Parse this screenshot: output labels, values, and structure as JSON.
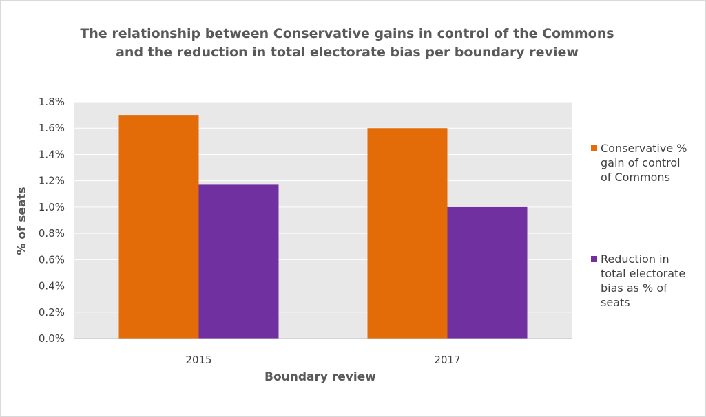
{
  "chart_data": {
    "type": "bar",
    "title_lines": [
      "The relationship between Conservative gains in control of the Commons",
      "and the reduction in total electorate bias per boundary review"
    ],
    "xlabel": "Boundary review",
    "ylabel": "% of seats",
    "categories": [
      "2015",
      "2017"
    ],
    "series": [
      {
        "name_lines": [
          "Conservative %",
          "gain of control",
          "of Commons"
        ],
        "values": [
          1.7,
          1.6
        ],
        "color": "#e36c09"
      },
      {
        "name_lines": [
          "Reduction in",
          "total electorate",
          "bias as % of",
          "seats"
        ],
        "values": [
          1.17,
          1.0
        ],
        "color": "#7030a0"
      }
    ],
    "ylim": [
      0,
      1.8
    ],
    "yticks": [
      "0.0%",
      "0.2%",
      "0.4%",
      "0.6%",
      "0.8%",
      "1.0%",
      "1.2%",
      "1.4%",
      "1.6%",
      "1.8%"
    ],
    "grid": true,
    "legend_position": "right",
    "plot_background": "#e8e8e8",
    "grid_color": "#ffffff"
  }
}
